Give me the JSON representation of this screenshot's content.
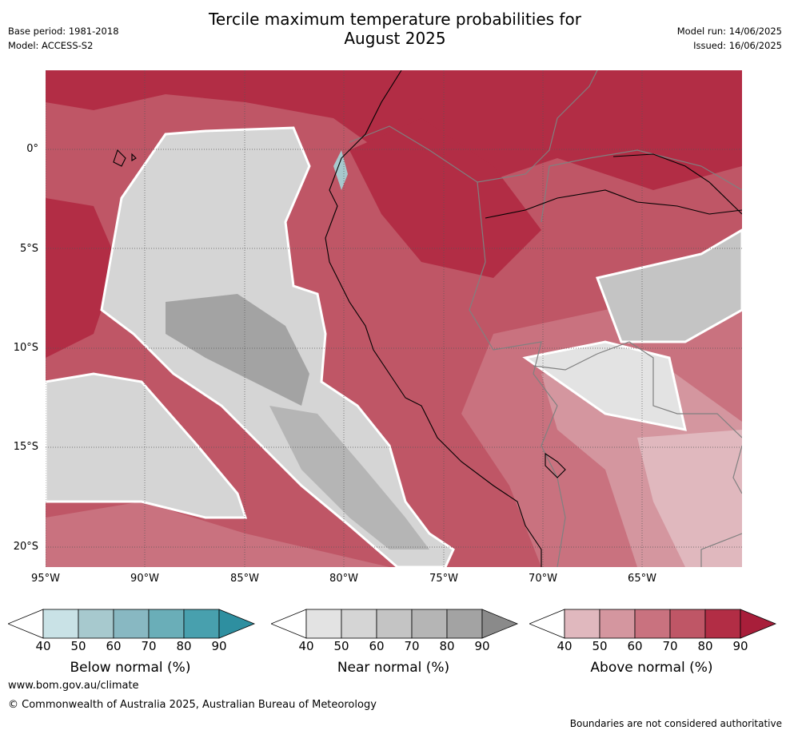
{
  "header": {
    "title_line1": "Tercile maximum temperature probabilities for",
    "title_line2": "August 2025",
    "base_period": "Base period: 1981-2018",
    "model": "Model: ACCESS-S2",
    "model_run": "Model run: 14/06/2025",
    "issued": "Issued: 16/06/2025"
  },
  "map": {
    "lat_labels": [
      "0°",
      "5°S",
      "10°S",
      "15°S",
      "20°S"
    ],
    "lon_labels": [
      "95°W",
      "90°W",
      "85°W",
      "80°W",
      "75°W",
      "70°W",
      "65°W"
    ],
    "lon_range": [
      -95,
      -60
    ],
    "lat_range": [
      -21,
      4
    ]
  },
  "colorbars": [
    {
      "name": "Below normal (%)",
      "ticks": [
        "40",
        "50",
        "60",
        "70",
        "80",
        "90"
      ],
      "colors": [
        "#ffffff",
        "#c9e2e6",
        "#a7c9ce",
        "#88b8c2",
        "#6aaeb8",
        "#48a0ae",
        "#2e8fa0"
      ]
    },
    {
      "name": "Near normal (%)",
      "ticks": [
        "40",
        "50",
        "60",
        "70",
        "80",
        "90"
      ],
      "colors": [
        "#ffffff",
        "#e3e3e3",
        "#d5d5d5",
        "#c4c4c4",
        "#b5b5b5",
        "#a3a3a3",
        "#8a8a8a"
      ]
    },
    {
      "name": "Above normal (%)",
      "ticks": [
        "40",
        "50",
        "60",
        "70",
        "80",
        "90"
      ],
      "colors": [
        "#ffffff",
        "#e0b8be",
        "#d4969f",
        "#c9727f",
        "#bf5666",
        "#b22d45",
        "#a81e3a"
      ]
    }
  ],
  "footer": {
    "website": "www.bom.gov.au/climate",
    "copyright": "© Commonwealth of Australia 2025, Australian Bureau of Meteorology",
    "disclaimer": "Boundaries are not considered authoritative"
  }
}
